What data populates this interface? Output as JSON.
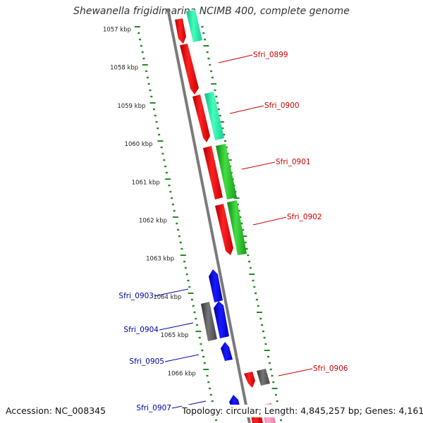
{
  "title": "Shewanella frigidimarina NCIMB 400, complete genome",
  "footer": {
    "accession": "Accession: NC_008345",
    "summary": "Topology: circular; Length: 4,845,257 bp; Genes: 4,161"
  },
  "colors": {
    "ruler": "#228b22",
    "backbone": "#808080",
    "forward_label": "#cc0000",
    "reverse_label": "#0000aa",
    "red_gene": "#ee1111",
    "blue_gene": "#0000dd",
    "teal_gene": "#22eeaa",
    "green_gene": "#22bb22",
    "gray_gene": "#555555",
    "pink_gene": "#ff88bb"
  },
  "ruler_labels": [
    "1057 kbp",
    "1058 kbp",
    "1059 kbp",
    "1060 kbp",
    "1061 kbp",
    "1062 kbp",
    "1063 kbp",
    "1064 kbp",
    "1065 kbp",
    "1066 kbp"
  ],
  "gene_labels": [
    {
      "text": "Sfri_0899",
      "strand": "forward"
    },
    {
      "text": "Sfri_0900",
      "strand": "forward"
    },
    {
      "text": "Sfri_0901",
      "strand": "forward"
    },
    {
      "text": "Sfri_0902",
      "strand": "forward"
    },
    {
      "text": "Sfri_0903",
      "strand": "reverse"
    },
    {
      "text": "Sfri_0904",
      "strand": "reverse"
    },
    {
      "text": "Sfri_0905",
      "strand": "reverse"
    },
    {
      "text": "Sfri_0906",
      "strand": "forward"
    },
    {
      "text": "Sfri_0907",
      "strand": "reverse"
    }
  ]
}
